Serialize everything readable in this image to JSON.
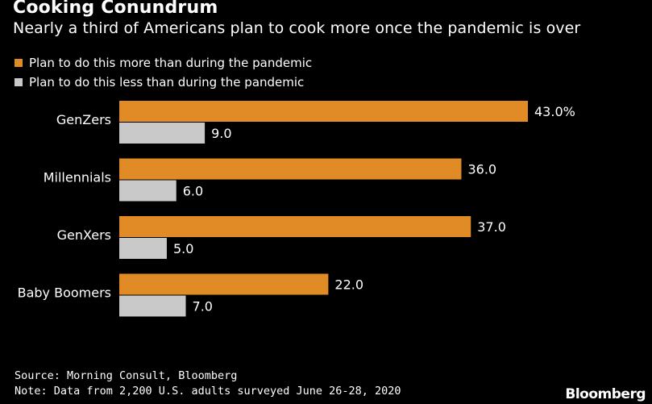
{
  "header": {
    "title": "Cooking Conundrum",
    "subtitle": "Nearly a third of Americans plan to cook more once the pandemic is over"
  },
  "footer": {
    "source": "Source: Morning Consult, Bloomberg",
    "note": "Note: Data from 2,200 U.S. adults surveyed June 26-28, 2020",
    "brand": "Bloomberg"
  },
  "colors": {
    "background": "#000000",
    "more": "#e08b25",
    "less": "#c9c9c9",
    "text": "#ffffff"
  },
  "chart_data": {
    "type": "bar",
    "orientation": "horizontal",
    "categories": [
      "GenZers",
      "Millennials",
      "GenXers",
      "Baby Boomers"
    ],
    "series": [
      {
        "name": "Plan to do this more than during the pandemic",
        "values": [
          43.0,
          36.0,
          37.0,
          22.0
        ],
        "labels": [
          "43.0%",
          "36.0",
          "37.0",
          "22.0"
        ],
        "color": "#e08b25"
      },
      {
        "name": "Plan to do this less than during the pandemic",
        "values": [
          9.0,
          6.0,
          5.0,
          7.0
        ],
        "labels": [
          "9.0",
          "6.0",
          "5.0",
          "7.0"
        ],
        "color": "#c9c9c9"
      }
    ],
    "xlim": [
      0,
      43
    ],
    "grid": false,
    "legend_position": "top-left"
  }
}
